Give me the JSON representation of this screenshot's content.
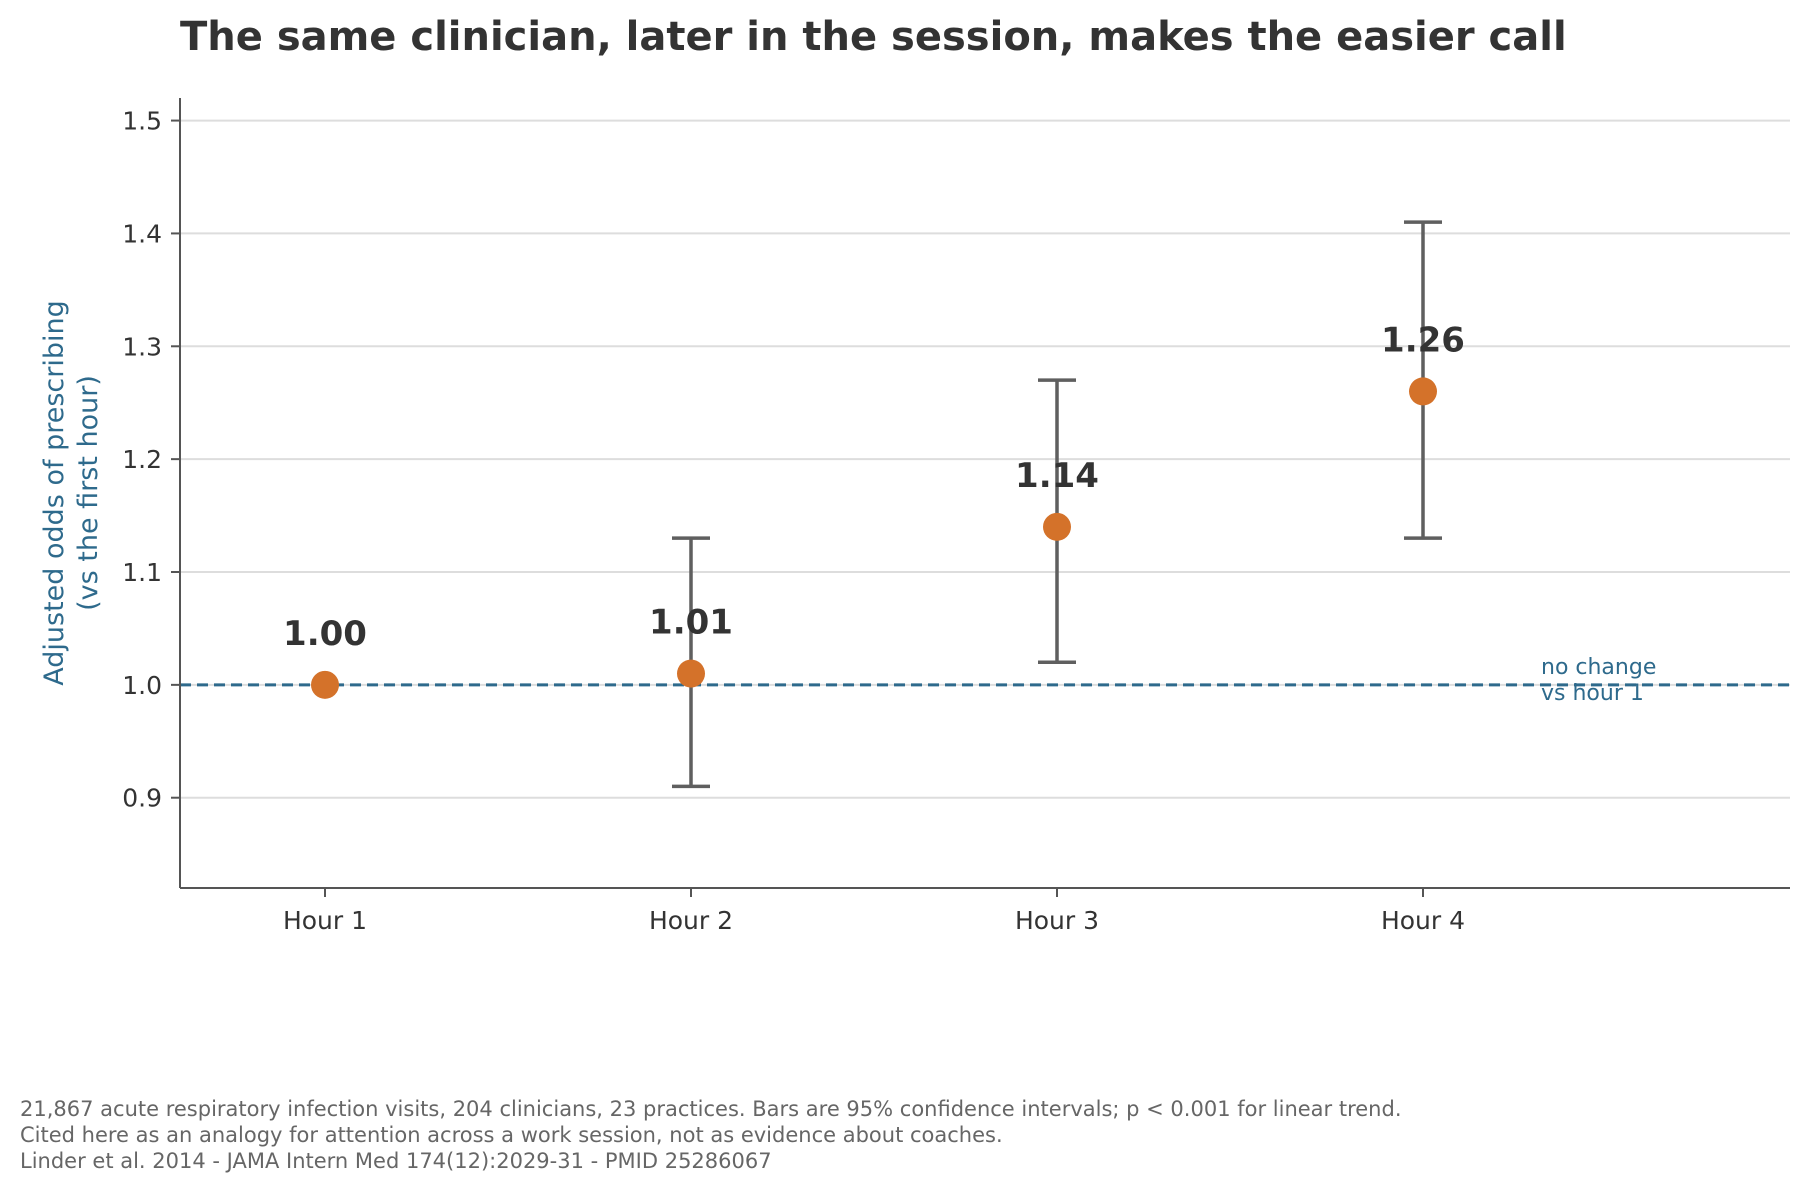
{
  "chart_data": {
    "type": "scatter",
    "title": "The same clinician, later in the session, makes the easier call",
    "ylabel": [
      "Adjusted odds of prescribing",
      "(vs the first hour)"
    ],
    "xlabel": "",
    "categories": [
      "Hour 1",
      "Hour 2",
      "Hour 3",
      "Hour 4"
    ],
    "series": [
      {
        "values": [
          1.0,
          1.01,
          1.14,
          1.26
        ],
        "ci_low": [
          null,
          0.91,
          1.02,
          1.13
        ],
        "ci_high": [
          null,
          1.13,
          1.27,
          1.41
        ],
        "value_labels": [
          "1.00",
          "1.01",
          "1.14",
          "1.26"
        ]
      }
    ],
    "ylim": [
      0.82,
      1.52
    ],
    "yticks": [
      0.9,
      1.0,
      1.1,
      1.2,
      1.3,
      1.4,
      1.5
    ],
    "ytick_labels": [
      "0.9",
      "1.0",
      "1.1",
      "1.2",
      "1.3",
      "1.4",
      "1.5"
    ],
    "grid": "horizontal",
    "reference_line": {
      "y": 1.0,
      "label": [
        "no change",
        "vs hour 1"
      ]
    },
    "colors": {
      "point": "#d4722a",
      "errorbar": "#5f5f5f",
      "reference": "#2e6a8c",
      "ylabel": "#2e6a8c",
      "grid": "#dddddd",
      "axis": "#555555",
      "text": "#333333",
      "caption": "#666666"
    }
  },
  "caption": [
    "21,867 acute respiratory infection visits, 204 clinicians, 23 practices. Bars are 95% confidence intervals; p < 0.001 for linear trend.",
    "Cited here as an analogy for attention across a work session, not as evidence about coaches.",
    "Linder et al. 2014 - JAMA Intern Med 174(12):2029-31 - PMID 25286067"
  ]
}
